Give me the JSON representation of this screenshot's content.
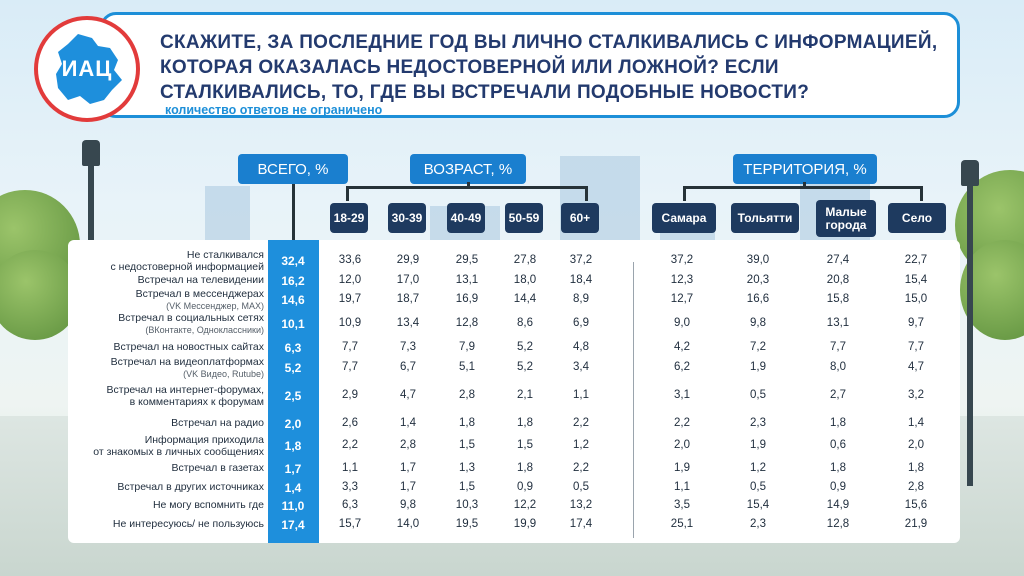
{
  "logo": {
    "text": "ИАЦ"
  },
  "title": "СКАЖИТЕ, ЗА ПОСЛЕДНИЕ ГОД ВЫ ЛИЧНО СТАЛКИВАЛИСЬ С ИНФОРМАЦИЕЙ, КОТОРАЯ ОКАЗАЛАСЬ НЕДОСТОВЕРНОЙ ИЛИ ЛОЖНОЙ? ЕСЛИ СТАЛКИВАЛИСЬ, ТО, ГДЕ ВЫ ВСТРЕЧАЛИ ПОДОБНЫЕ НОВОСТИ?",
  "subtitle": "количество ответов не ограничено",
  "groups": {
    "total": "ВСЕГО, %",
    "age": "ВОЗРАСТ, %",
    "territory": "ТЕРРИТОРИЯ, %"
  },
  "columns": [
    "18-29",
    "30-39",
    "40-49",
    "50-59",
    "60+",
    "Самара",
    "Тольятти",
    "Малые города",
    "Село"
  ],
  "colors": {
    "accent": "#1e8fdc",
    "header_border": "#1d8fd8",
    "title": "#233a6e",
    "logo_ring": "#e23b3b"
  },
  "chart_data": {
    "type": "table",
    "title": "СКАЖИТЕ, ЗА ПОСЛЕДНИЕ ГОД ВЫ ЛИЧНО СТАЛКИВАЛИСЬ С ИНФОРМАЦИЕЙ, КОТОРАЯ ОКАЗАЛАСЬ НЕДОСТОВЕРНОЙ ИЛИ ЛОЖНОЙ? ЕСЛИ СТАЛКИВАЛИСЬ, ТО, ГДЕ ВЫ ВСТРЕЧАЛИ ПОДОБНЫЕ НОВОСТИ?",
    "columns": [
      "ВСЕГО, %",
      "18-29",
      "30-39",
      "40-49",
      "50-59",
      "60+",
      "Самара",
      "Тольятти",
      "Малые города",
      "Село"
    ],
    "rows": [
      {
        "label": "Не сталкивался",
        "sub": "с недостоверной информацией",
        "values": [
          "32,4",
          "33,6",
          "29,9",
          "29,5",
          "27,8",
          "37,2",
          "37,2",
          "39,0",
          "27,4",
          "22,7"
        ]
      },
      {
        "label": "Встречал на телевидении",
        "sub": "",
        "values": [
          "16,2",
          "12,0",
          "17,0",
          "13,1",
          "18,0",
          "18,4",
          "12,3",
          "20,3",
          "20,8",
          "15,4"
        ]
      },
      {
        "label": "Встречал в мессенджерах",
        "sub": "(VK Мессенджер, MAX)",
        "values": [
          "14,6",
          "19,7",
          "18,7",
          "16,9",
          "14,4",
          "8,9",
          "12,7",
          "16,6",
          "15,8",
          "15,0"
        ]
      },
      {
        "label": "Встречал в социальных сетях",
        "sub": "(ВКонтакте, Одноклассники)",
        "values": [
          "10,1",
          "10,9",
          "13,4",
          "12,8",
          "8,6",
          "6,9",
          "9,0",
          "9,8",
          "13,1",
          "9,7"
        ]
      },
      {
        "label": "Встречал на новостных сайтах",
        "sub": "",
        "values": [
          "6,3",
          "7,7",
          "7,3",
          "7,9",
          "5,2",
          "4,8",
          "4,2",
          "7,2",
          "7,7",
          "7,7"
        ]
      },
      {
        "label": "Встречал на видеоплатформах",
        "sub": "(VK Видео, Rutube)",
        "values": [
          "5,2",
          "7,7",
          "6,7",
          "5,1",
          "5,2",
          "3,4",
          "6,2",
          "1,9",
          "8,0",
          "4,7"
        ]
      },
      {
        "label": "Встречал на интернет-форумах,",
        "sub": "в комментариях к форумам",
        "values": [
          "2,5",
          "2,9",
          "4,7",
          "2,8",
          "2,1",
          "1,1",
          "3,1",
          "0,5",
          "2,7",
          "3,2"
        ]
      },
      {
        "label": "Встречал на радио",
        "sub": "",
        "values": [
          "2,0",
          "2,6",
          "1,4",
          "1,8",
          "1,8",
          "2,2",
          "2,2",
          "2,3",
          "1,8",
          "1,4"
        ]
      },
      {
        "label": "Информация приходила",
        "sub": "от знакомых в личных сообщениях",
        "values": [
          "1,8",
          "2,2",
          "2,8",
          "1,5",
          "1,5",
          "1,2",
          "2,0",
          "1,9",
          "0,6",
          "2,0"
        ]
      },
      {
        "label": "Встречал в газетах",
        "sub": "",
        "values": [
          "1,7",
          "1,1",
          "1,7",
          "1,3",
          "1,8",
          "2,2",
          "1,9",
          "1,2",
          "1,8",
          "1,8"
        ]
      },
      {
        "label": "Встречал в других источниках",
        "sub": "",
        "values": [
          "1,4",
          "3,3",
          "1,7",
          "1,5",
          "0,9",
          "0,5",
          "1,1",
          "0,5",
          "0,9",
          "2,8"
        ]
      },
      {
        "label": "Не могу вспомнить где",
        "sub": "",
        "values": [
          "11,0",
          "6,3",
          "9,8",
          "10,3",
          "12,2",
          "13,2",
          "3,5",
          "15,4",
          "14,9",
          "15,6"
        ]
      },
      {
        "label": "Не интересуюсь/ не пользуюсь",
        "sub": "",
        "values": [
          "17,4",
          "15,7",
          "14,0",
          "19,5",
          "19,9",
          "17,4",
          "25,1",
          "2,3",
          "12,8",
          "21,9"
        ]
      }
    ]
  }
}
